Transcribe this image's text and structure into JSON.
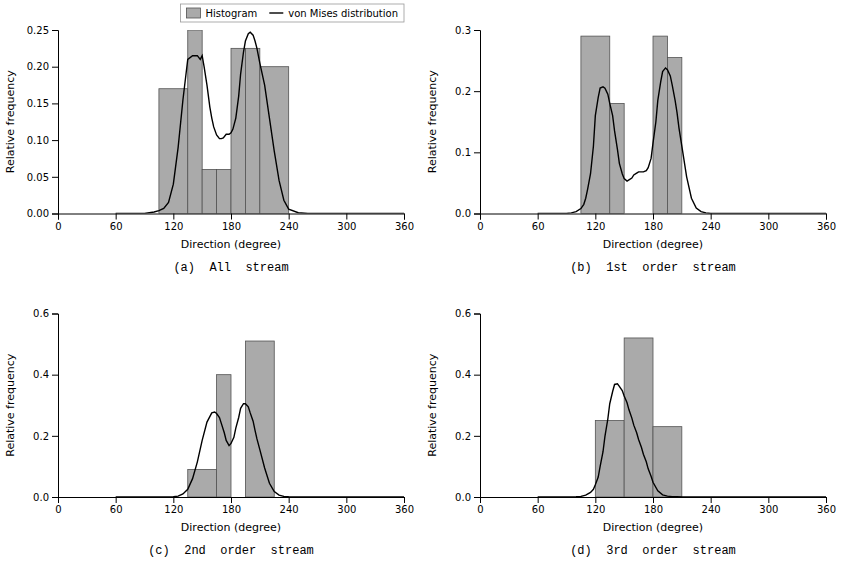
{
  "chart_data": [
    {
      "type": "histogram",
      "title": "(a)  All  stream",
      "xlabel": "Direction (degree)",
      "ylabel": "Relative frequency",
      "xlim": [
        0,
        360
      ],
      "xticks": [
        0,
        60,
        120,
        180,
        240,
        300,
        360
      ],
      "ylim": [
        0,
        0.25
      ],
      "yticks": [
        {
          "value": 0,
          "label": "0.00"
        },
        0.05,
        {
          "value": 0.1,
          "label": "0.10"
        },
        0.15,
        {
          "value": 0.2,
          "label": "0.20"
        },
        0.25
      ],
      "legend": "upper right",
      "series": [
        {
          "name": "Histogram",
          "type": "bar",
          "color": "#aaaaaa",
          "bins": [
            105,
            135,
            150,
            165,
            180,
            195,
            210,
            240
          ],
          "values": [
            0.17,
            0.25,
            0.06,
            0.06,
            0.225,
            0.225,
            0.2
          ]
        },
        {
          "name": "von Mises distribution",
          "type": "line",
          "color": "#000000",
          "x": [
            60,
            80,
            90,
            95,
            100,
            105,
            110,
            115,
            120,
            125,
            130,
            135,
            140,
            145,
            148,
            150,
            152,
            155,
            158,
            160,
            162,
            165,
            168,
            170,
            172,
            175,
            178,
            180,
            182,
            185,
            188,
            190,
            193,
            195,
            198,
            200,
            203,
            205,
            207,
            210,
            215,
            220,
            225,
            230,
            235,
            240,
            250,
            260,
            270,
            280,
            300,
            320,
            360
          ],
          "values": [
            0.0,
            0.0,
            0.0,
            0.001,
            0.002,
            0.004,
            0.007,
            0.015,
            0.04,
            0.09,
            0.155,
            0.21,
            0.215,
            0.215,
            0.21,
            0.215,
            0.2,
            0.175,
            0.145,
            0.13,
            0.118,
            0.107,
            0.102,
            0.102,
            0.103,
            0.108,
            0.108,
            0.11,
            0.115,
            0.13,
            0.16,
            0.19,
            0.22,
            0.235,
            0.245,
            0.247,
            0.243,
            0.235,
            0.225,
            0.205,
            0.175,
            0.13,
            0.085,
            0.045,
            0.018,
            0.006,
            0.001,
            0.0,
            0.0,
            0.0,
            0.0,
            0.0,
            0.0
          ]
        }
      ]
    },
    {
      "type": "histogram",
      "title": "(b)  1st  order  stream",
      "xlabel": "Direction (degree)",
      "ylabel": "Relative frequency",
      "xlim": [
        0,
        360
      ],
      "xticks": [
        0,
        60,
        120,
        180,
        240,
        300,
        360
      ],
      "ylim": [
        0,
        0.3
      ],
      "yticks": [
        {
          "value": 0,
          "label": "0.0"
        },
        0.1,
        0.2,
        0.3
      ],
      "series": [
        {
          "type": "bar",
          "color": "#aaaaaa",
          "bins": [
            105,
            135,
            150,
            180,
            195,
            210,
            240
          ],
          "values": [
            0.29,
            0.18,
            0.0,
            0.29,
            0.255,
            0.0
          ]
        },
        {
          "type": "line",
          "color": "#000000",
          "x": [
            60,
            80,
            90,
            95,
            100,
            105,
            108,
            110,
            112,
            115,
            118,
            120,
            123,
            125,
            128,
            130,
            133,
            135,
            138,
            140,
            143,
            145,
            148,
            150,
            153,
            155,
            158,
            160,
            163,
            165,
            168,
            170,
            173,
            175,
            178,
            180,
            183,
            185,
            188,
            190,
            193,
            195,
            198,
            200,
            203,
            205,
            207,
            210,
            215,
            220,
            225,
            230,
            235,
            240,
            250,
            260,
            270,
            300,
            360
          ],
          "values": [
            0.0,
            0.0,
            0.0,
            0.001,
            0.003,
            0.008,
            0.015,
            0.025,
            0.04,
            0.065,
            0.11,
            0.16,
            0.19,
            0.205,
            0.207,
            0.205,
            0.195,
            0.18,
            0.16,
            0.135,
            0.105,
            0.082,
            0.065,
            0.057,
            0.053,
            0.055,
            0.058,
            0.063,
            0.066,
            0.068,
            0.068,
            0.068,
            0.07,
            0.075,
            0.09,
            0.115,
            0.15,
            0.185,
            0.215,
            0.232,
            0.238,
            0.235,
            0.225,
            0.21,
            0.185,
            0.165,
            0.14,
            0.11,
            0.06,
            0.025,
            0.009,
            0.003,
            0.001,
            0.0,
            0.0,
            0.0,
            0.0,
            0.0,
            0.0
          ]
        }
      ]
    },
    {
      "type": "histogram",
      "title": "(c)  2nd  order  stream",
      "xlabel": "Direction (degree)",
      "ylabel": "Relative frequency",
      "xlim": [
        0,
        360
      ],
      "xticks": [
        0,
        60,
        120,
        180,
        240,
        300,
        360
      ],
      "ylim": [
        0,
        0.6
      ],
      "yticks": [
        {
          "value": 0,
          "label": "0.0"
        },
        0.2,
        0.4,
        0.6
      ],
      "series": [
        {
          "type": "bar",
          "color": "#aaaaaa",
          "bins": [
            135,
            165,
            180,
            195,
            225
          ],
          "values": [
            0.09,
            0.4,
            0.0,
            0.51
          ]
        },
        {
          "type": "line",
          "color": "#000000",
          "x": [
            60,
            90,
            110,
            120,
            125,
            130,
            135,
            140,
            145,
            150,
            155,
            160,
            163,
            165,
            168,
            170,
            173,
            175,
            178,
            180,
            183,
            185,
            188,
            190,
            193,
            195,
            198,
            200,
            203,
            205,
            207,
            210,
            215,
            220,
            225,
            230,
            235,
            240,
            250,
            260,
            300,
            360
          ],
          "values": [
            0.0,
            0.0,
            0.0,
            0.001,
            0.003,
            0.01,
            0.025,
            0.06,
            0.115,
            0.185,
            0.245,
            0.275,
            0.278,
            0.273,
            0.26,
            0.24,
            0.21,
            0.185,
            0.168,
            0.175,
            0.195,
            0.225,
            0.26,
            0.29,
            0.305,
            0.305,
            0.295,
            0.275,
            0.248,
            0.218,
            0.19,
            0.155,
            0.095,
            0.045,
            0.018,
            0.006,
            0.002,
            0.001,
            0.0,
            0.0,
            0.0,
            0.0
          ]
        }
      ]
    },
    {
      "type": "histogram",
      "title": "(d)  3rd  order  stream",
      "xlabel": "Direction (degree)",
      "ylabel": "Relative frequency",
      "xlim": [
        0,
        360
      ],
      "xticks": [
        0,
        60,
        120,
        180,
        240,
        300,
        360
      ],
      "ylim": [
        0,
        0.6
      ],
      "yticks": [
        {
          "value": 0,
          "label": "0.0"
        },
        0.2,
        0.4,
        0.6
      ],
      "series": [
        {
          "type": "bar",
          "color": "#aaaaaa",
          "bins": [
            120,
            150,
            180,
            210
          ],
          "values": [
            0.25,
            0.52,
            0.23
          ]
        },
        {
          "type": "line",
          "color": "#000000",
          "x": [
            60,
            80,
            90,
            100,
            105,
            110,
            115,
            118,
            120,
            123,
            125,
            128,
            130,
            133,
            135,
            138,
            140,
            143,
            145,
            148,
            150,
            153,
            155,
            158,
            160,
            163,
            165,
            168,
            170,
            173,
            175,
            178,
            180,
            185,
            190,
            195,
            200,
            205,
            210,
            215,
            220,
            225,
            230,
            240,
            260,
            300,
            360
          ],
          "values": [
            0.0,
            0.0,
            0.0,
            0.001,
            0.002,
            0.006,
            0.015,
            0.025,
            0.04,
            0.065,
            0.1,
            0.148,
            0.198,
            0.255,
            0.305,
            0.345,
            0.368,
            0.37,
            0.362,
            0.348,
            0.33,
            0.308,
            0.285,
            0.258,
            0.235,
            0.21,
            0.188,
            0.162,
            0.14,
            0.115,
            0.092,
            0.068,
            0.048,
            0.02,
            0.007,
            0.003,
            0.001,
            0.001,
            0.0,
            0.0,
            0.0,
            0.0,
            0.0,
            0.0,
            0.0,
            0.0,
            0.0
          ]
        }
      ]
    }
  ]
}
